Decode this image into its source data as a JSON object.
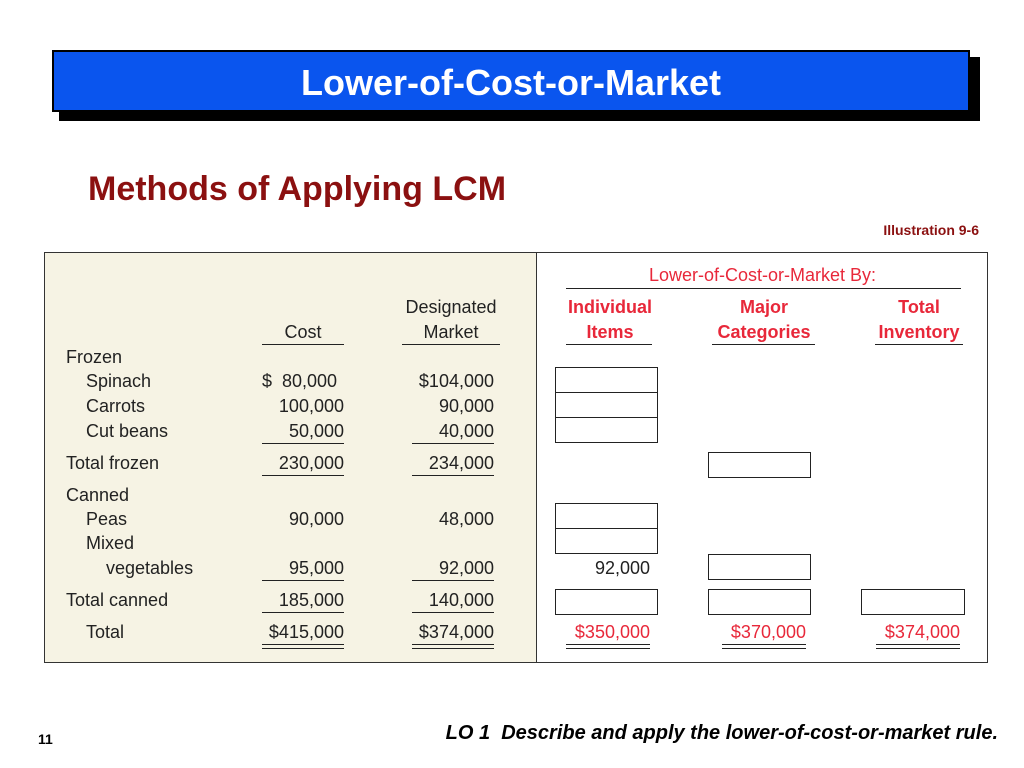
{
  "title": "Lower-of-Cost-or-Market",
  "subtitle": "Methods of Applying LCM",
  "illustration": "Illustration 9-6",
  "table": {
    "group_header": "Lower-of-Cost-or-Market By:",
    "headers": {
      "cost": "Cost",
      "market_line1": "Designated",
      "market_line2": "Market",
      "individual_line1": "Individual",
      "individual_line2": "Items",
      "major_line1": "Major",
      "major_line2": "Categories",
      "total_line1": "Total",
      "total_line2": "Inventory"
    },
    "rows": {
      "frozen": "Frozen",
      "spinach": {
        "label": "Spinach",
        "cost": "$  80,000",
        "market": "$104,000"
      },
      "carrots": {
        "label": "Carrots",
        "cost": "100,000",
        "market": "90,000"
      },
      "cut_beans": {
        "label": "Cut beans",
        "cost": "50,000",
        "market": "40,000"
      },
      "total_frozen": {
        "label": "Total frozen",
        "cost": "230,000",
        "market": "234,000"
      },
      "canned": "Canned",
      "peas": {
        "label": "Peas",
        "cost": "90,000",
        "market": "48,000"
      },
      "mixed": "Mixed",
      "vegetables": {
        "label": "vegetables",
        "cost": "95,000",
        "market": "92,000",
        "individual": "92,000"
      },
      "total_canned": {
        "label": "Total canned",
        "cost": "185,000",
        "market": "140,000"
      },
      "total": {
        "label": "Total",
        "cost": "$415,000",
        "market": "$374,000",
        "individual": "$350,000",
        "major": "$370,000",
        "total_inventory": "$374,000"
      }
    }
  },
  "footer": {
    "page_number": "11",
    "learning_objective": "LO 1  Describe and apply the lower-of-cost-or-market rule."
  },
  "colors": {
    "banner": "#0a55ee",
    "subtitle": "#8b1010",
    "panel": "#f6f3e4",
    "red": "#e8283a"
  }
}
